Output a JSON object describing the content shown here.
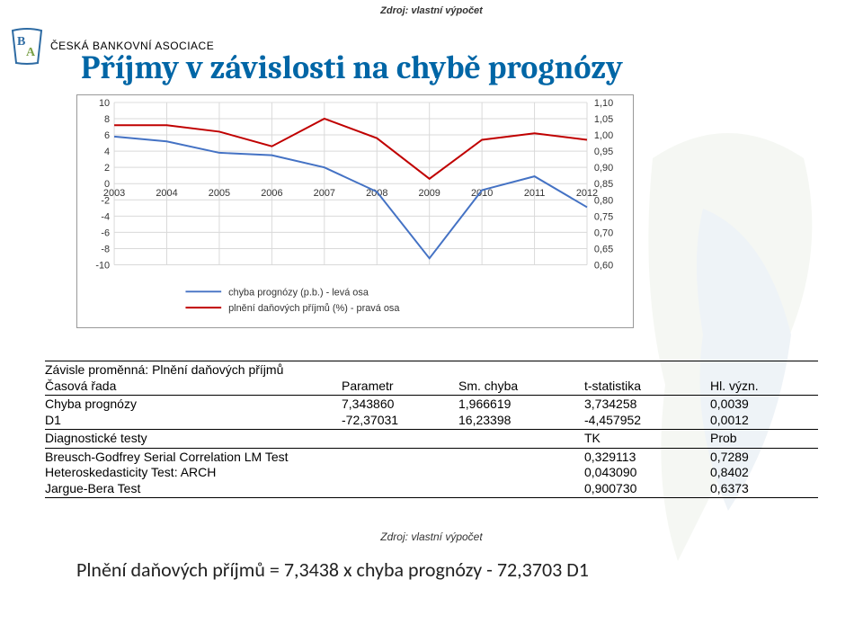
{
  "source_top": "Zdroj: vlastní výpočet",
  "brand": {
    "name": "ČESKÁ BANKOVNÍ ASOCIACE"
  },
  "page_title": "Příjmy v závislosti na chybě prognózy",
  "chart": {
    "type": "dual-axis-line",
    "background_color": "#ffffff",
    "left_axis": {
      "min": -10,
      "max": 10,
      "ticks": [
        -10,
        -8,
        -6,
        -4,
        -2,
        0,
        2,
        4,
        6,
        8,
        10
      ],
      "fontsize": 11
    },
    "right_axis": {
      "min": 0.6,
      "max": 1.1,
      "ticks": [
        "0,60",
        "0,65",
        "0,70",
        "0,75",
        "0,80",
        "0,85",
        "0,90",
        "0,95",
        "1,00",
        "1,05",
        "1,10"
      ],
      "fontsize": 11
    },
    "x_categories": [
      "2003",
      "2004",
      "2005",
      "2006",
      "2007",
      "2008",
      "2009",
      "2010",
      "2011",
      "2012"
    ],
    "grid_color": "#d9d9d9",
    "series": [
      {
        "name": "chyba prognózy (p.b.) - levá osa",
        "color": "#4472c4",
        "line_width": 2,
        "axis": "left",
        "values": [
          5.8,
          5.2,
          3.8,
          3.5,
          2.0,
          -1.0,
          -9.2,
          -0.8,
          0.9,
          -2.9
        ]
      },
      {
        "name": "plnění daňových příjmů (%) - pravá osa",
        "color": "#c00000",
        "line_width": 2,
        "axis": "right",
        "values": [
          1.03,
          1.03,
          1.01,
          0.965,
          1.05,
          0.99,
          0.865,
          0.985,
          1.005,
          0.985
        ]
      }
    ],
    "legend_fontsize": 11
  },
  "table": {
    "dep_var_label": "Závisle proměnná:",
    "dep_var_value": "Plnění daňových příjmů",
    "time_label": "Časová řada",
    "headers": [
      "Parametr",
      "Sm. chyba",
      "t-statistika",
      "Hl. význ."
    ],
    "rows": [
      {
        "name": "Chyba prognózy",
        "v": [
          "7,343860",
          "1,966619",
          "3,734258",
          "0,0039"
        ]
      },
      {
        "name": "D1",
        "v": [
          "-72,37031",
          "16,23398",
          "-4,457952",
          "0,0012"
        ]
      }
    ],
    "diag_label": "Diagnostické testy",
    "diag_headers": [
      "TK",
      "Prob"
    ],
    "diag_rows": [
      {
        "name": "Breusch-Godfrey Serial Correlation LM Test",
        "v": [
          "0,329113",
          "0,7289"
        ]
      },
      {
        "name": "Heteroskedasticity Test: ARCH",
        "v": [
          "0,043090",
          "0,8402"
        ]
      },
      {
        "name": "Jargue-Bera Test",
        "v": [
          "0,900730",
          "0,6373"
        ]
      }
    ]
  },
  "source_bottom": "Zdroj: vlastní výpočet",
  "formula": "Plnění daňových příjmů = 7,3438 x chyba prognózy - 72,3703 D1"
}
